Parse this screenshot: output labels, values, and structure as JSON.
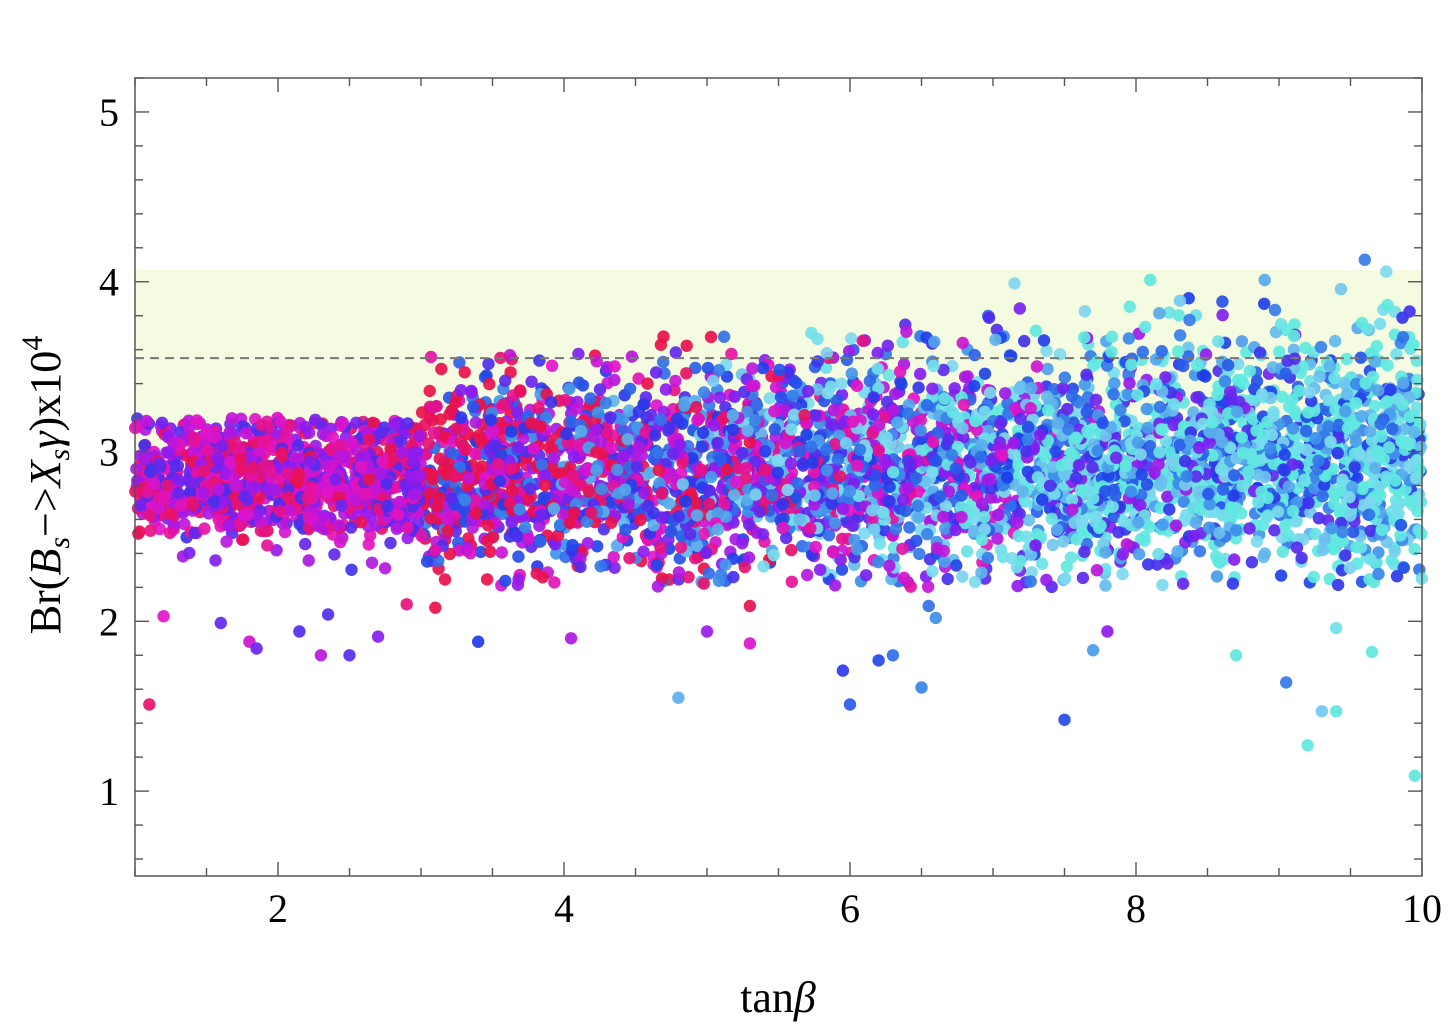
{
  "chart_data": {
    "type": "scatter",
    "title": "",
    "xlabel": "tanβ",
    "ylabel": "Br(Bs−>Xsγ)x10^4",
    "ylabel_parts": {
      "prefix": "Br(",
      "B": "B",
      "s1": "s",
      "arrow": "−>",
      "X": "X",
      "s2": "s",
      "gamma": "γ",
      "suffix": ")x10",
      "exp": "4"
    },
    "xlabel_parts": {
      "tan": "tan",
      "beta": "β"
    },
    "xlim": [
      1,
      10
    ],
    "ylim": [
      0.5,
      5.2
    ],
    "x_ticks": [
      2,
      4,
      6,
      8,
      10
    ],
    "x_tick_labels": [
      "2",
      "4",
      "6",
      "8",
      "10"
    ],
    "y_ticks": [
      1,
      2,
      3,
      4,
      5
    ],
    "y_tick_labels": [
      "1",
      "2",
      "3",
      "4",
      "5"
    ],
    "grid": false,
    "legend": "none",
    "experimental_band": {
      "y_min": 2.99,
      "y_max": 4.07,
      "color": "#f5fbe0"
    },
    "central_value_line": {
      "y": 3.55,
      "style": "dashed",
      "color": "#777777"
    },
    "color_gradient": [
      "#e8114a",
      "#e213c8",
      "#8a1cf0",
      "#1e3ce8",
      "#3a8ae8",
      "#7fd8f0",
      "#5fe8e0"
    ],
    "generator_seed": 20240527,
    "outliers": [
      {
        "x": 1.1,
        "y": 1.51
      },
      {
        "x": 1.2,
        "y": 2.03
      },
      {
        "x": 1.6,
        "y": 1.99
      },
      {
        "x": 1.8,
        "y": 1.88
      },
      {
        "x": 1.85,
        "y": 1.84
      },
      {
        "x": 2.15,
        "y": 1.94
      },
      {
        "x": 2.3,
        "y": 1.8
      },
      {
        "x": 2.35,
        "y": 2.04
      },
      {
        "x": 2.5,
        "y": 1.8
      },
      {
        "x": 2.7,
        "y": 1.91
      },
      {
        "x": 2.9,
        "y": 2.1
      },
      {
        "x": 3.1,
        "y": 2.08
      },
      {
        "x": 3.4,
        "y": 1.88
      },
      {
        "x": 4.05,
        "y": 1.9
      },
      {
        "x": 4.8,
        "y": 1.55
      },
      {
        "x": 5.0,
        "y": 1.94
      },
      {
        "x": 5.3,
        "y": 1.87
      },
      {
        "x": 5.3,
        "y": 2.09
      },
      {
        "x": 5.95,
        "y": 1.71
      },
      {
        "x": 6.0,
        "y": 1.51
      },
      {
        "x": 6.2,
        "y": 1.77
      },
      {
        "x": 6.3,
        "y": 1.8
      },
      {
        "x": 6.5,
        "y": 1.61
      },
      {
        "x": 6.55,
        "y": 2.09
      },
      {
        "x": 6.6,
        "y": 2.02
      },
      {
        "x": 7.5,
        "y": 1.42
      },
      {
        "x": 7.7,
        "y": 1.83
      },
      {
        "x": 7.8,
        "y": 1.94
      },
      {
        "x": 8.7,
        "y": 1.8
      },
      {
        "x": 9.05,
        "y": 1.64
      },
      {
        "x": 9.2,
        "y": 1.27
      },
      {
        "x": 9.3,
        "y": 1.47
      },
      {
        "x": 9.4,
        "y": 1.47
      },
      {
        "x": 9.4,
        "y": 1.96
      },
      {
        "x": 9.65,
        "y": 1.82
      },
      {
        "x": 9.95,
        "y": 1.09
      },
      {
        "x": 9.6,
        "y": 4.13
      },
      {
        "x": 9.75,
        "y": 4.06
      },
      {
        "x": 8.1,
        "y": 4.01
      },
      {
        "x": 7.15,
        "y": 3.99
      },
      {
        "x": 8.9,
        "y": 4.01
      }
    ]
  }
}
